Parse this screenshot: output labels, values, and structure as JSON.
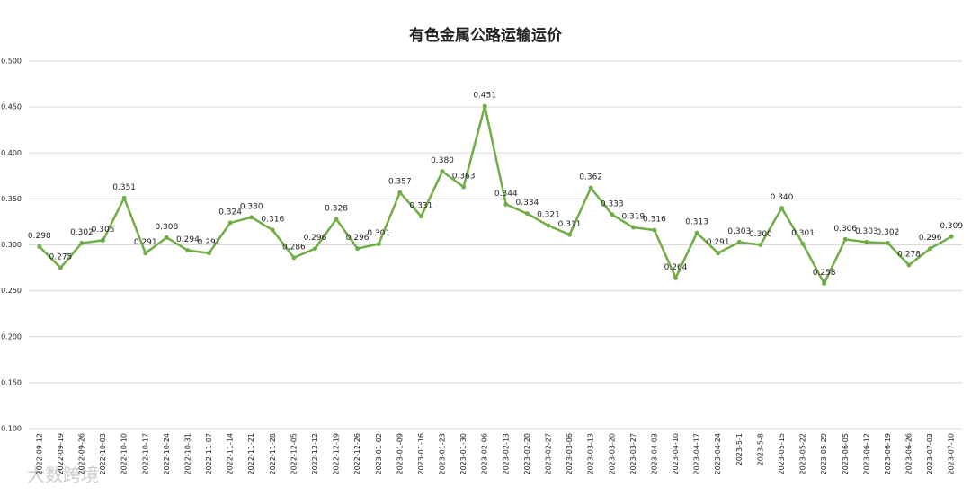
{
  "chart_data": {
    "type": "line",
    "title": "有色金属公路运输运价",
    "categories": [
      "2022-09-12",
      "2022-09-19",
      "2022-09-26",
      "2022-10-03",
      "2022-10-10",
      "2022-10-17",
      "2022-10-24",
      "2022-10-31",
      "2022-11-07",
      "2022-11-14",
      "2022-11-21",
      "2022-11-28",
      "2022-12-05",
      "2022-12-12",
      "2022-12-19",
      "2022-12-26",
      "2023-01-02",
      "2023-01-09",
      "2023-01-16",
      "2023-01-23",
      "2023-01-30",
      "2023-02-06",
      "2023-02-13",
      "2023-02-20",
      "2023-02-27",
      "2023-03-06",
      "2023-03-13",
      "2023-03-20",
      "2023-03-27",
      "2023-04-03",
      "2023-04-10",
      "2023-04-17",
      "2023-04-24",
      "2023-5-1",
      "2023-5-8",
      "2023-05-15",
      "2023-05-22",
      "2023-05-29",
      "2023-06-05",
      "2023-06-12",
      "2023-06-19",
      "2023-06-26",
      "2023-07-03",
      "2023-07-10"
    ],
    "series": [
      {
        "name": "有色金属公路运输运价",
        "color": "#70ad47",
        "values": [
          0.298,
          0.275,
          0.302,
          0.305,
          0.351,
          0.291,
          0.308,
          0.294,
          0.291,
          0.324,
          0.33,
          0.316,
          0.286,
          0.296,
          0.328,
          0.296,
          0.301,
          0.357,
          0.331,
          0.38,
          0.363,
          0.451,
          0.344,
          0.334,
          0.321,
          0.311,
          0.362,
          0.333,
          0.319,
          0.316,
          0.264,
          0.313,
          0.291,
          0.303,
          0.3,
          0.34,
          0.301,
          0.258,
          0.306,
          0.303,
          0.302,
          0.278,
          0.296,
          0.309
        ],
        "value_labels": [
          "0.298",
          "0.275",
          "0.302",
          "0.305",
          "0.351",
          "0.291",
          "0.308",
          "0.294",
          "0.291",
          "0.324",
          "0.330",
          "0.316",
          "0.286",
          "0.296",
          "0.328",
          "0.296",
          "0.301",
          "0.357",
          "0.331",
          "0.380",
          "0.363",
          "0.451",
          "0.344",
          "0.334",
          "0.321",
          "0.311",
          "0.362",
          "0.333",
          "0.319",
          "0.316",
          "0.264",
          "0.313",
          "0.291",
          "0.303",
          "0.300",
          "0.340",
          "0.301",
          "0.258",
          "0.306",
          "0.303",
          "0.302",
          "0.278",
          "0.296",
          "0.309"
        ]
      }
    ],
    "ylim": [
      0.1,
      0.5
    ],
    "yticks": [
      {
        "value": 0.1,
        "label": "0.100"
      },
      {
        "value": 0.15,
        "label": "0.150"
      },
      {
        "value": 0.2,
        "label": "0.200"
      },
      {
        "value": 0.25,
        "label": "0.250"
      },
      {
        "value": 0.3,
        "label": "0.300"
      },
      {
        "value": 0.35,
        "label": "0.350"
      },
      {
        "value": 0.4,
        "label": "0.400"
      },
      {
        "value": 0.45,
        "label": "0.450"
      },
      {
        "value": 0.5,
        "label": "0.500"
      }
    ],
    "grid": true,
    "watermark": "大数跨境"
  }
}
